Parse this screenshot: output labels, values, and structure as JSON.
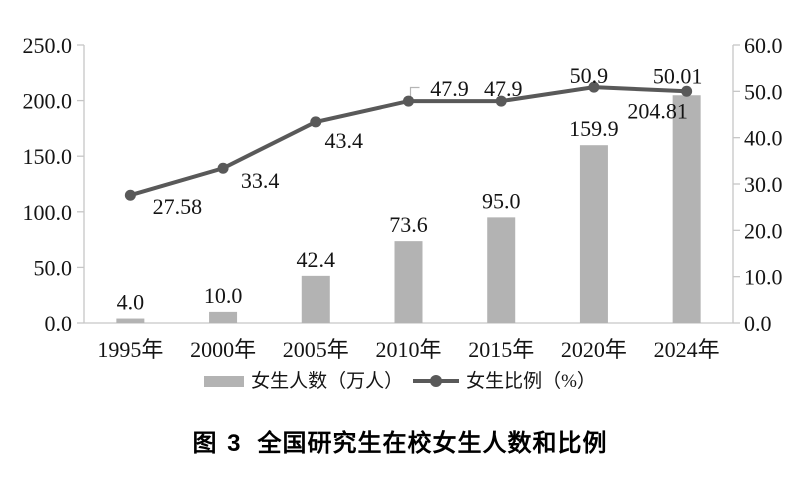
{
  "chart_data": {
    "type": "bar",
    "subtype": "bar+line dual axis combo",
    "caption_label": "图 3",
    "caption_text": "全国研究生在校女生人数和比例",
    "categories": [
      "1995年",
      "2000年",
      "2005年",
      "2010年",
      "2015年",
      "2020年",
      "2024年"
    ],
    "series": [
      {
        "name": "女生人数（万人）",
        "type": "bar",
        "axis": "left",
        "color": "#b3b3b3",
        "values": [
          4.0,
          10.0,
          42.4,
          73.6,
          95.0,
          159.9,
          204.81
        ],
        "labels": [
          "4.0",
          "10.0",
          "42.4",
          "73.6",
          "95.0",
          "159.9",
          "204.81"
        ]
      },
      {
        "name": "女生比例（%）",
        "type": "line",
        "axis": "right",
        "color": "#595959",
        "values": [
          27.58,
          33.4,
          43.4,
          47.9,
          47.9,
          50.9,
          50.01
        ],
        "labels": [
          "27.58",
          "33.4",
          "43.4",
          "47.9",
          "47.9",
          "50.9",
          "50.01"
        ]
      }
    ],
    "left_axis": {
      "min": 0,
      "max": 250,
      "step": 50,
      "tick_labels": [
        "250.0",
        "200.0",
        "150.0",
        "100.0",
        "50.0",
        "0.0"
      ]
    },
    "right_axis": {
      "min": 0,
      "max": 60,
      "step": 10,
      "tick_labels": [
        "60.0",
        "50.0",
        "40.0",
        "30.0",
        "20.0",
        "10.0",
        "0.0"
      ]
    },
    "legend_position": "bottom",
    "grid": false,
    "axis_color": "#c6c6c6",
    "background": "#ffffff"
  }
}
